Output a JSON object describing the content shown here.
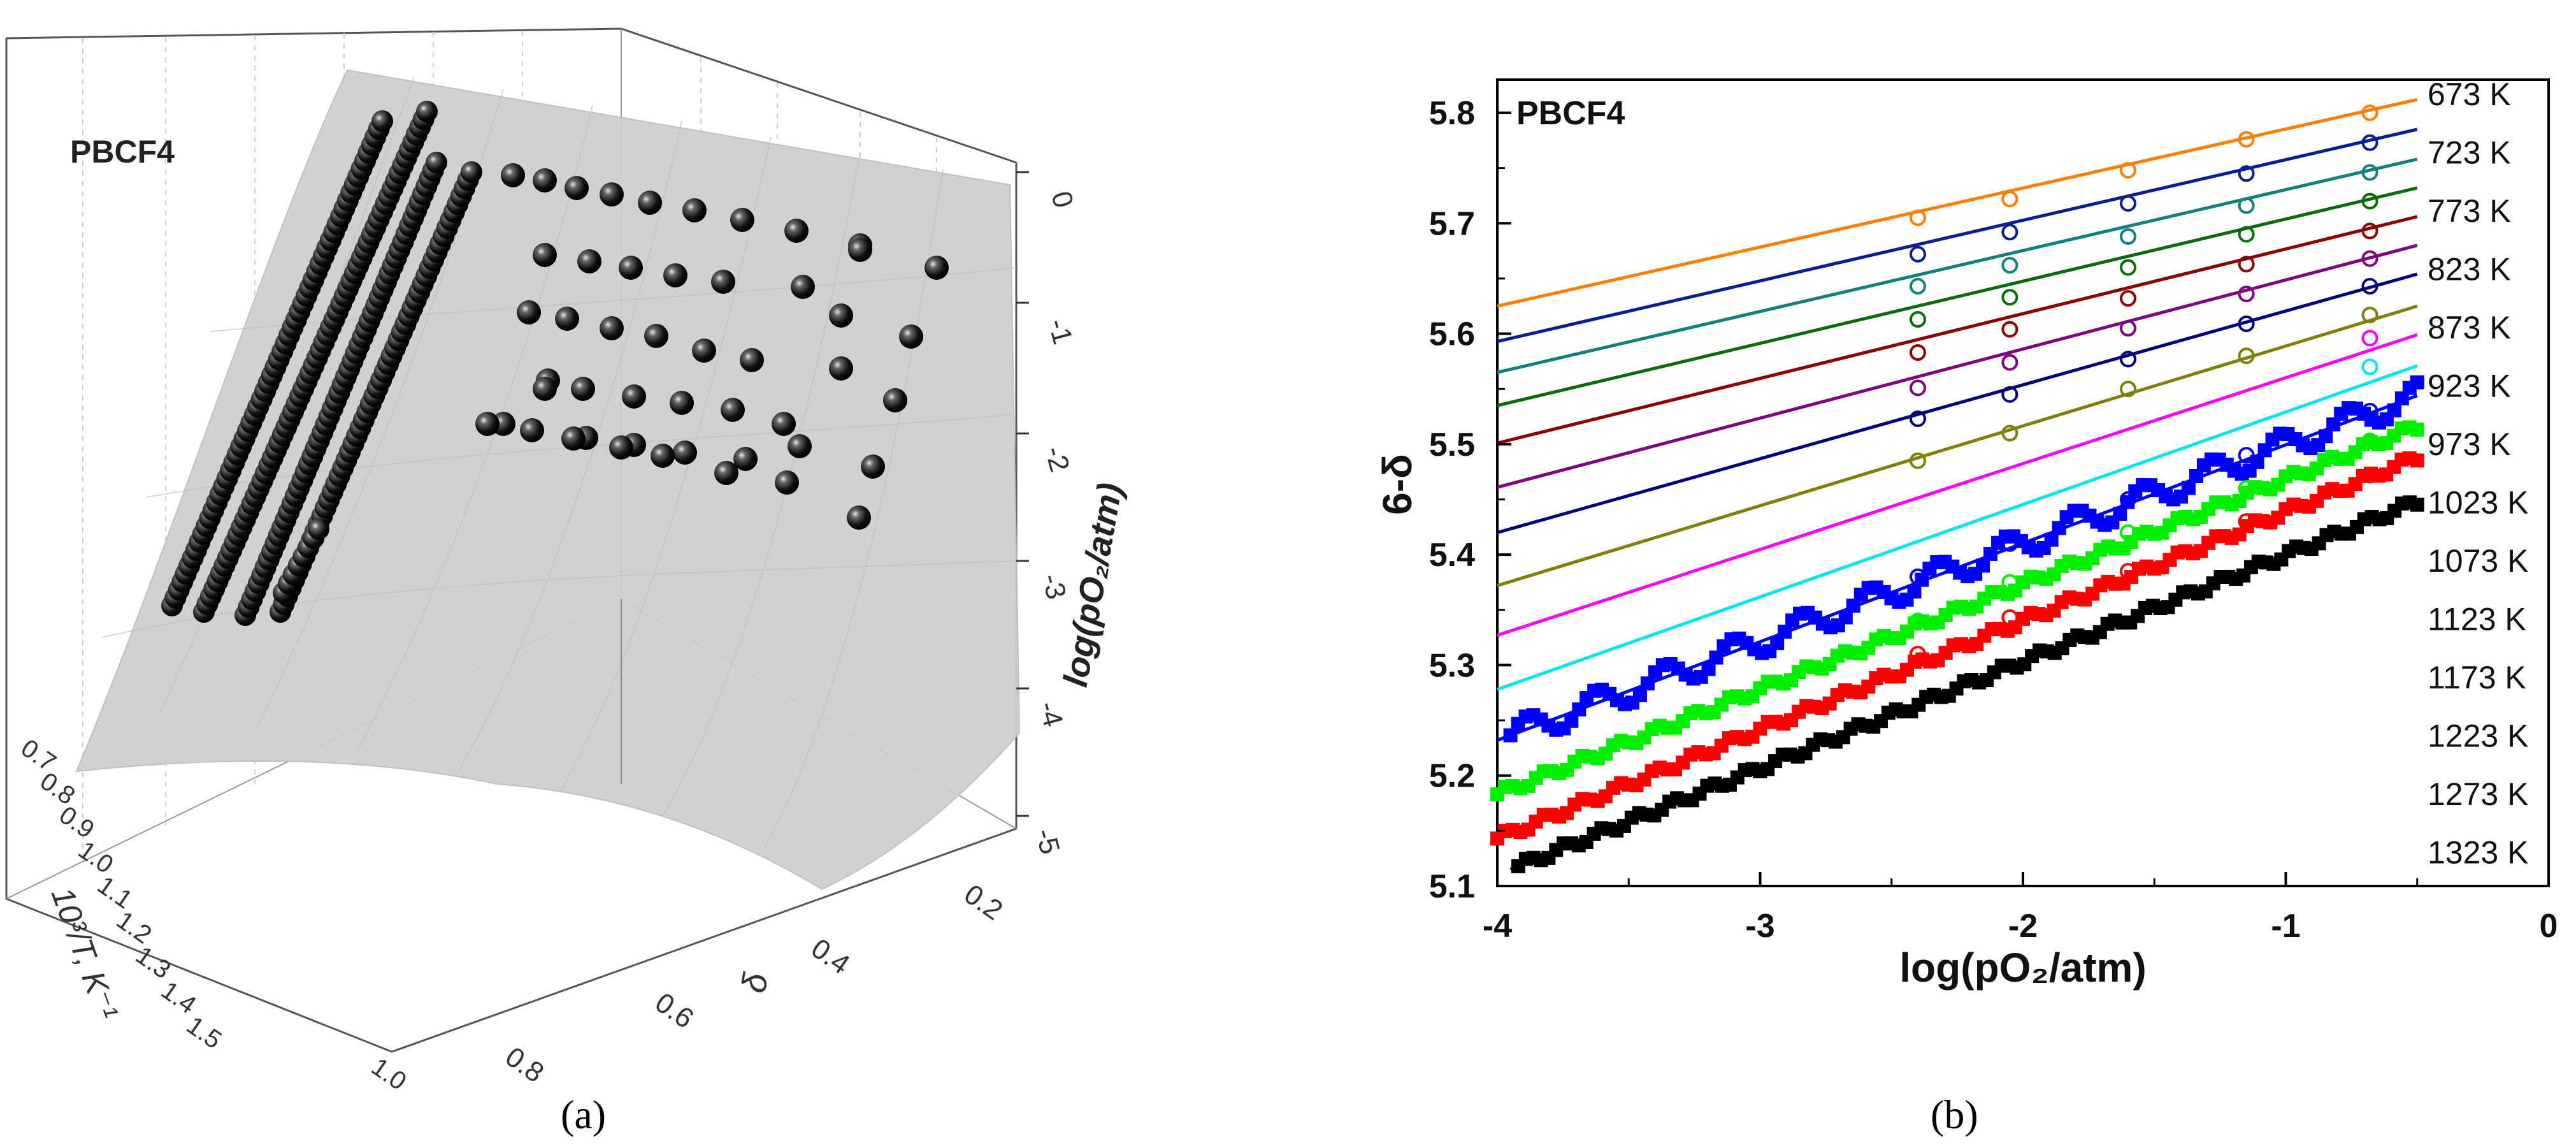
{
  "panel_a": {
    "sample_label": "PBCF4",
    "caption": "(a)",
    "axis_temp_label": "10³/T, K⁻¹",
    "axis_temp_ticks": [
      "0.7",
      "0.8",
      "0.9",
      "1.0",
      "1.1",
      "1.2",
      "1.3",
      "1.4",
      "1.5",
      "1.0"
    ],
    "axis_delta_label": "δ",
    "axis_delta_ticks": [
      "0.2",
      "0.4",
      "0.6",
      "0.8"
    ],
    "axis_po2_label": "log(pO₂/atm)",
    "axis_po2_ticks": [
      "0",
      "-1",
      "-2",
      "-3",
      "-4",
      "-5"
    ]
  },
  "panel_b": {
    "sample_label": "PBCF4",
    "caption": "(b)"
  },
  "chart_data": [
    {
      "type": "scatter",
      "title": "PBCF4",
      "description_only_visible_text": true,
      "xlabel": "10³/T, K⁻¹",
      "ylabel": "δ",
      "zlabel": "log(pO₂/atm)",
      "xlim": [
        0.7,
        1.5
      ],
      "ylim": [
        0.2,
        1.0
      ],
      "zlim": [
        -5,
        0
      ]
    },
    {
      "type": "line",
      "title": "PBCF4",
      "xlabel": "log(pO₂/atm)",
      "ylabel": "6-δ",
      "xlim": [
        -4,
        0
      ],
      "ylim": [
        5.1,
        5.83
      ],
      "xticks": [
        -4,
        -3,
        -2,
        -1,
        0
      ],
      "xtick_labels": [
        "-4",
        "-3",
        "-2",
        "-1",
        "0"
      ],
      "yticks": [
        5.1,
        5.2,
        5.3,
        5.4,
        5.5,
        5.6,
        5.7,
        5.8
      ],
      "ytick_labels": [
        "5.1",
        "5.2",
        "5.3",
        "5.4",
        "5.5",
        "5.6",
        "5.7",
        "5.8"
      ],
      "legend_position": "right",
      "open_marker_x": [
        -2.4,
        -2.05,
        -1.6,
        -1.15,
        -0.68
      ],
      "series": [
        {
          "name": "673 K",
          "color": "#ff7f00",
          "fit": [
            [
              -4,
              5.625
            ],
            [
              -0.5,
              5.812
            ]
          ],
          "points": [
            5.705,
            5.722,
            5.748,
            5.776,
            5.8
          ]
        },
        {
          "name": "723 K",
          "color": "#0a1f8f",
          "fit": [
            [
              -4,
              5.593
            ],
            [
              -0.5,
              5.785
            ]
          ],
          "points": [
            5.672,
            5.692,
            5.718,
            5.745,
            5.773
          ]
        },
        {
          "name": "773 K",
          "color": "#138080",
          "fit": [
            [
              -4,
              5.565
            ],
            [
              -0.5,
              5.758
            ]
          ],
          "points": [
            5.643,
            5.662,
            5.688,
            5.716,
            5.746
          ]
        },
        {
          "name": "823 K",
          "color": "#0a6b0a",
          "fit": [
            [
              -4,
              5.535
            ],
            [
              -0.5,
              5.732
            ]
          ],
          "points": [
            5.613,
            5.633,
            5.66,
            5.69,
            5.72
          ]
        },
        {
          "name": "873 K",
          "color": "#8b0000",
          "fit": [
            [
              -4,
              5.501
            ],
            [
              -0.5,
              5.706
            ]
          ],
          "points": [
            5.583,
            5.604,
            5.632,
            5.663,
            5.693
          ]
        },
        {
          "name": "923 K",
          "color": "#800080",
          "fit": [
            [
              -4,
              5.461
            ],
            [
              -0.5,
              5.68
            ]
          ],
          "points": [
            5.551,
            5.574,
            5.605,
            5.636,
            5.668
          ]
        },
        {
          "name": "973 K",
          "color": "#00007a",
          "fit": [
            [
              -4,
              5.42
            ],
            [
              -0.5,
              5.654
            ]
          ],
          "points": [
            5.523,
            5.545,
            5.577,
            5.609,
            5.643
          ]
        },
        {
          "name": "1023 K",
          "color": "#808000",
          "fit": [
            [
              -4,
              5.372
            ],
            [
              -0.5,
              5.625
            ]
          ],
          "points": [
            5.485,
            5.51,
            5.55,
            5.58,
            5.617
          ]
        },
        {
          "name": "1073 K",
          "color": "#ff00ff",
          "fit": [
            [
              -4,
              5.327
            ],
            [
              -0.5,
              5.599
            ]
          ],
          "points": [
            null,
            null,
            null,
            null,
            5.596
          ]
        },
        {
          "name": "1123 K",
          "color": "#00e5ee",
          "fit": [
            [
              -4,
              5.278
            ],
            [
              -0.5,
              5.571
            ]
          ],
          "points": [
            null,
            null,
            null,
            null,
            5.57
          ]
        },
        {
          "name": "1173 K",
          "color": "#0000ff",
          "fit": [
            [
              -4,
              5.232
            ],
            [
              -0.5,
              5.544
            ]
          ],
          "points": [
            5.38,
            5.41,
            5.45,
            5.49,
            5.53
          ],
          "dense_markers": "square",
          "dense_x_range": [
            -3.95,
            -0.5
          ]
        },
        {
          "name": "1223 K",
          "color": "#00ee00",
          "fit": [
            [
              -4,
              5.183
            ],
            [
              -0.5,
              5.516
            ]
          ],
          "points": [
            5.34,
            5.375,
            5.42,
            5.46,
            5.503
          ],
          "dense_markers": "square",
          "dense_x_range": [
            -4.0,
            -0.5
          ]
        },
        {
          "name": "1273 K",
          "color": "#ff0000",
          "fit": [
            [
              -4,
              5.143
            ],
            [
              -0.5,
              5.488
            ]
          ],
          "points": [
            5.31,
            5.343,
            5.385,
            5.43,
            5.472
          ],
          "dense_markers": "square",
          "dense_x_range": [
            -4.0,
            -0.5
          ]
        },
        {
          "name": "1323 K",
          "color": "#000000",
          "fit": [
            [
              -3.95,
              5.115
            ],
            [
              -0.5,
              5.448
            ]
          ],
          "points": [],
          "dense_markers": "square",
          "dense_x_range": [
            -3.92,
            -0.5
          ]
        }
      ]
    }
  ]
}
